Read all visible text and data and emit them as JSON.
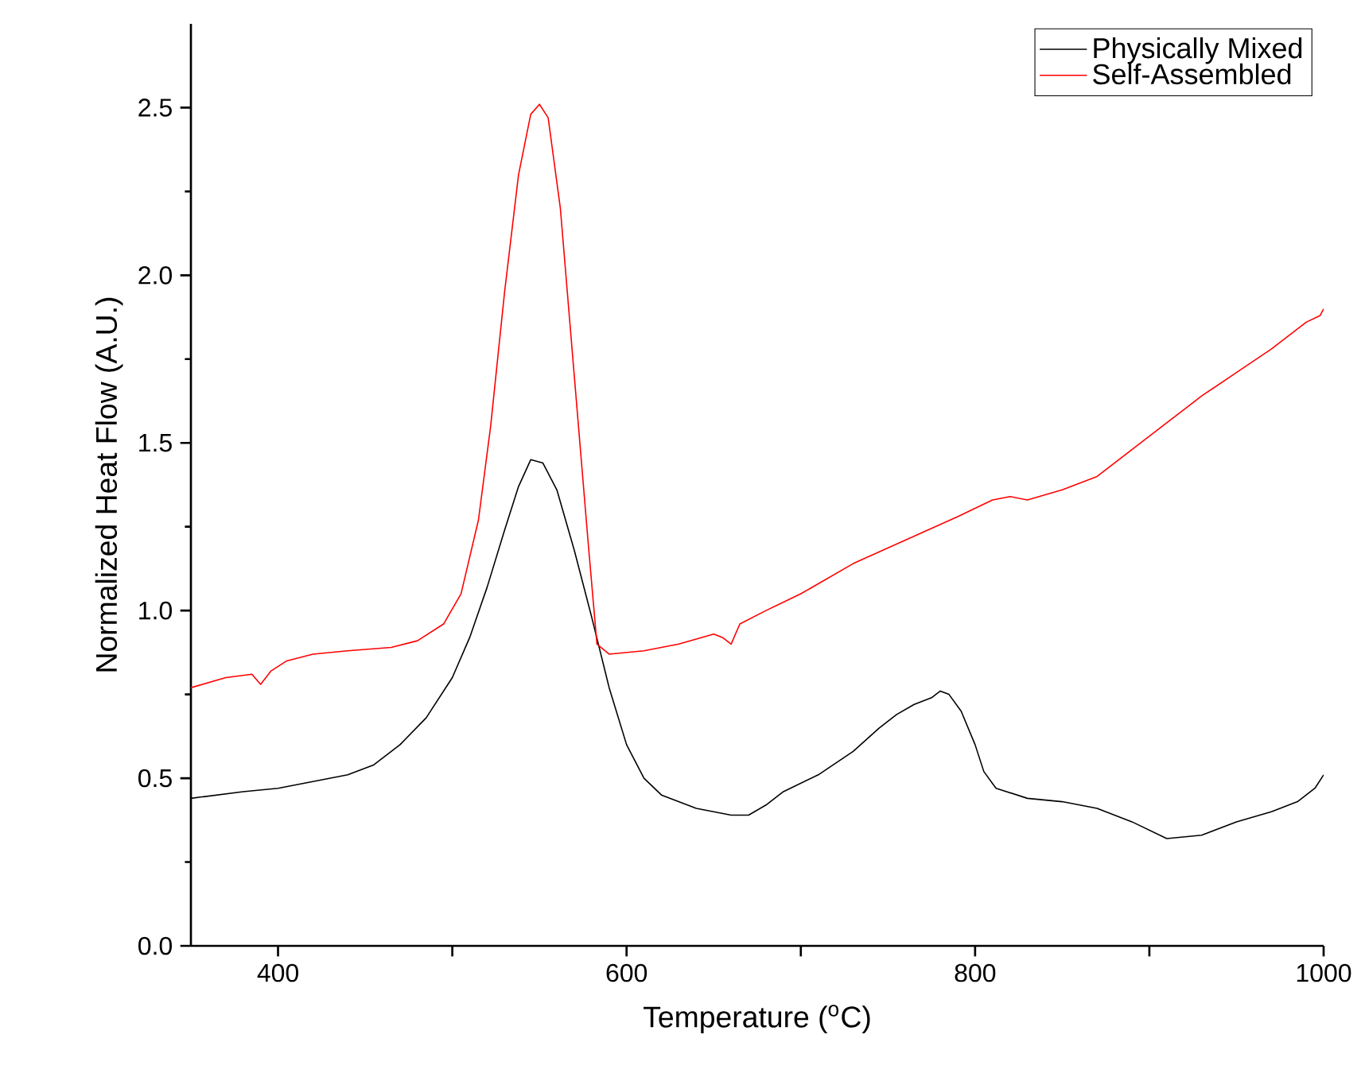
{
  "chart_data": {
    "type": "line",
    "xlabel": "Temperature ($^{o}$C)",
    "ylabel": "Normalized Heat Flow (A.U.)",
    "xlim": [
      350,
      1000
    ],
    "ylim": [
      0,
      2.75
    ],
    "xticks": [
      400,
      {
        "value": 500,
        "label": null
      },
      600,
      {
        "value": 700,
        "label": null
      },
      800,
      {
        "value": 900,
        "label": null
      },
      1000
    ],
    "yticks": [
      {
        "value": 0,
        "label": "0.0"
      },
      {
        "value": 0.5,
        "label": "0.5"
      },
      {
        "value": 1,
        "label": "1.0"
      },
      {
        "value": 1.5,
        "label": "1.5"
      },
      {
        "value": 2,
        "label": "2.0"
      },
      {
        "value": 2.5,
        "label": "2.5"
      }
    ],
    "legend": "top right",
    "grid": false,
    "marker": "none",
    "line_style": "solid",
    "series": [
      {
        "name": "Physically Mixed",
        "color": "#000000",
        "x": [
          350,
          380,
          400,
          420,
          440,
          455,
          470,
          485,
          500,
          510,
          520,
          530,
          538,
          545,
          552,
          560,
          570,
          580,
          590,
          600,
          610,
          620,
          640,
          660,
          670,
          680,
          690,
          710,
          730,
          745,
          755,
          765,
          775,
          780,
          785,
          792,
          800,
          805,
          812,
          830,
          850,
          870,
          890,
          910,
          930,
          950,
          970,
          985,
          995,
          1000
        ],
        "values": [
          0.44,
          0.46,
          0.47,
          0.49,
          0.51,
          0.54,
          0.6,
          0.68,
          0.8,
          0.92,
          1.07,
          1.24,
          1.37,
          1.45,
          1.44,
          1.36,
          1.18,
          0.98,
          0.77,
          0.6,
          0.5,
          0.45,
          0.41,
          0.39,
          0.39,
          0.42,
          0.46,
          0.51,
          0.58,
          0.65,
          0.69,
          0.72,
          0.74,
          0.76,
          0.75,
          0.7,
          0.6,
          0.52,
          0.47,
          0.44,
          0.43,
          0.41,
          0.37,
          0.32,
          0.33,
          0.37,
          0.4,
          0.43,
          0.47,
          0.51
        ]
      },
      {
        "name": "Self-Assembled",
        "color": "#ff0000",
        "x": [
          350,
          370,
          385,
          390,
          396,
          405,
          420,
          440,
          465,
          480,
          495,
          505,
          515,
          522,
          530,
          538,
          545,
          550,
          555,
          562,
          570,
          578,
          583,
          590,
          610,
          630,
          650,
          655,
          660,
          665,
          680,
          700,
          730,
          760,
          790,
          810,
          820,
          830,
          850,
          870,
          890,
          910,
          930,
          950,
          970,
          990,
          998,
          1000
        ],
        "values": [
          0.77,
          0.8,
          0.81,
          0.78,
          0.82,
          0.85,
          0.87,
          0.88,
          0.89,
          0.91,
          0.96,
          1.05,
          1.27,
          1.55,
          1.95,
          2.3,
          2.48,
          2.51,
          2.47,
          2.2,
          1.7,
          1.2,
          0.9,
          0.87,
          0.88,
          0.9,
          0.93,
          0.92,
          0.9,
          0.96,
          1.0,
          1.05,
          1.14,
          1.21,
          1.28,
          1.33,
          1.34,
          1.33,
          1.36,
          1.4,
          1.48,
          1.56,
          1.64,
          1.71,
          1.78,
          1.86,
          1.88,
          1.9
        ]
      }
    ]
  }
}
